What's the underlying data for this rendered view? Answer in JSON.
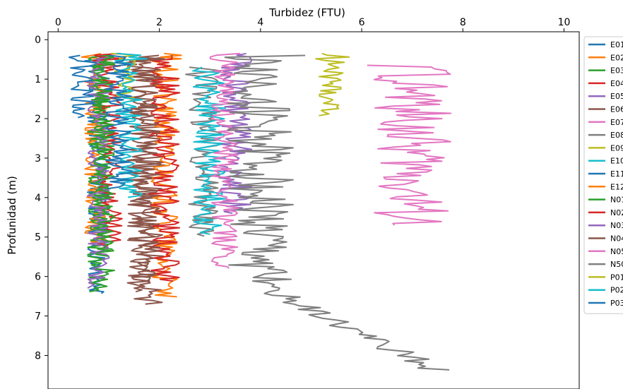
{
  "chart_data": {
    "type": "line",
    "xlabel": "Turbidez (FTU)",
    "ylabel": "Profunidad (m)",
    "x_ticks": [
      "0",
      "2",
      "4",
      "6",
      "8",
      "10"
    ],
    "y_ticks": [
      "0",
      "1",
      "2",
      "3",
      "4",
      "5",
      "6",
      "7",
      "8"
    ],
    "xlim": [
      -0.2,
      10.3
    ],
    "ylim": [
      8.85,
      -0.2
    ],
    "y_inverted": true,
    "x_axis_position": "top",
    "legend_position": "right, outside plot",
    "series": [
      {
        "name": "E01",
        "color": "#1f77b4",
        "base": 0.8,
        "amp": 0.1,
        "ymin": 0.4,
        "ymax": 6.45
      },
      {
        "name": "E02",
        "color": "#ff7f0e",
        "base": 0.75,
        "amp": 0.1,
        "ymin": 0.35,
        "ymax": 5.2
      },
      {
        "name": "E03",
        "color": "#2ca02c",
        "base": 0.85,
        "amp": 0.12,
        "ymin": 0.4,
        "ymax": 6.4
      },
      {
        "name": "E04",
        "color": "#d62728",
        "base": 1.0,
        "amp": 0.12,
        "ymin": 0.35,
        "ymax": 5.3
      },
      {
        "name": "E05",
        "color": "#9467bd",
        "base": 0.8,
        "amp": 0.1,
        "ymin": 0.4,
        "ymax": 6.3
      },
      {
        "name": "E06",
        "color": "#8c564b",
        "base": 1.75,
        "amp": 0.18,
        "ymin": 0.4,
        "ymax": 6.7
      },
      {
        "name": "E07",
        "color": "#e377c2",
        "base": 7.0,
        "amp": 0.35,
        "ymin": 0.65,
        "ymax": 4.7
      },
      {
        "name": "E08",
        "color": "#7f7f7f",
        "base": 2.9,
        "amp": 0.15,
        "ymin": 0.7,
        "ymax": 5.0
      },
      {
        "name": "E09",
        "color": "#bcbd22",
        "base": 5.4,
        "amp": 0.12,
        "ymin": 0.35,
        "ymax": 1.95
      },
      {
        "name": "E10",
        "color": "#17becf",
        "base": 3.0,
        "amp": 0.15,
        "ymin": 0.7,
        "ymax": 4.95
      },
      {
        "name": "E11",
        "color": "#1f77b4",
        "base": 0.5,
        "amp": 0.12,
        "ymin": 0.4,
        "ymax": 2.0
      },
      {
        "name": "E12",
        "color": "#ff7f0e",
        "base": 2.1,
        "amp": 0.12,
        "ymin": 0.35,
        "ymax": 6.55
      },
      {
        "name": "N01",
        "color": "#2ca02c",
        "base": 0.9,
        "amp": 0.1,
        "ymin": 0.4,
        "ymax": 5.5
      },
      {
        "name": "N02",
        "color": "#d62728",
        "base": 2.1,
        "amp": 0.14,
        "ymin": 0.4,
        "ymax": 6.15
      },
      {
        "name": "N03",
        "color": "#9467bd",
        "base": 3.5,
        "amp": 0.15,
        "ymin": 0.35,
        "ymax": 4.4
      },
      {
        "name": "N04",
        "color": "#8c564b",
        "base": 1.7,
        "amp": 0.15,
        "ymin": 0.4,
        "ymax": 6.4
      },
      {
        "name": "N05",
        "color": "#e377c2",
        "base": 3.3,
        "amp": 0.12,
        "ymin": 0.35,
        "ymax": 5.8
      },
      {
        "name": "N50",
        "color": "#7f7f7f",
        "base": 4.0,
        "amp": 0.3,
        "ymin": 0.4,
        "ymax": 8.4
      },
      {
        "name": "P01",
        "color": "#bcbd22",
        "base": 1.3,
        "amp": 0.1,
        "ymin": 0.35,
        "ymax": 1.6
      },
      {
        "name": "P02",
        "color": "#17becf",
        "base": 1.4,
        "amp": 0.12,
        "ymin": 0.35,
        "ymax": 4.0
      },
      {
        "name": "P03",
        "color": "#1f77b4",
        "base": 1.2,
        "amp": 0.12,
        "ymin": 0.4,
        "ymax": 3.8
      }
    ]
  }
}
